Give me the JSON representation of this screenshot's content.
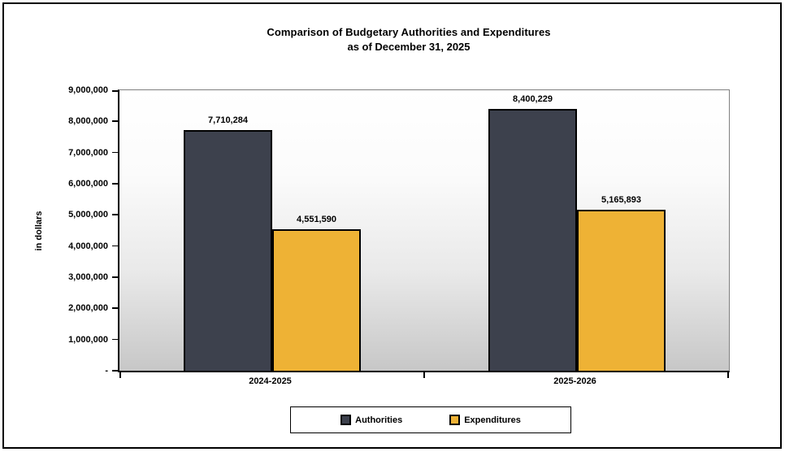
{
  "chart_data": {
    "type": "bar",
    "title": "Comparison of Budgetary Authorities and Expenditures",
    "subtitle": "as of December 31, 2025",
    "ylabel": "in dollars",
    "xlabel": "",
    "categories": [
      "2024-2025",
      "2025-2026"
    ],
    "series": [
      {
        "name": "Authorities",
        "color": "#3d414d",
        "values": [
          7710284,
          8400229
        ],
        "labels": [
          "7,710,284",
          "8,400,229"
        ]
      },
      {
        "name": "Expenditures",
        "color": "#eeb235",
        "values": [
          4551590,
          5165893
        ],
        "labels": [
          "4,551,590",
          "5,165,893"
        ]
      }
    ],
    "ylim": [
      0,
      9000000
    ],
    "ytick_interval": 1000000,
    "ytick_labels": [
      "-",
      "1,000,000",
      "2,000,000",
      "3,000,000",
      "4,000,000",
      "5,000,000",
      "6,000,000",
      "7,000,000",
      "8,000,000",
      "9,000,000"
    ],
    "grid": false,
    "legend_position": "bottom",
    "colors": {
      "plot_gradient_top": "#ffffff",
      "plot_gradient_bottom": "#c7c7c7",
      "plot_border": "#7f7f7f",
      "axis": "#000000",
      "text": "#000000"
    }
  }
}
